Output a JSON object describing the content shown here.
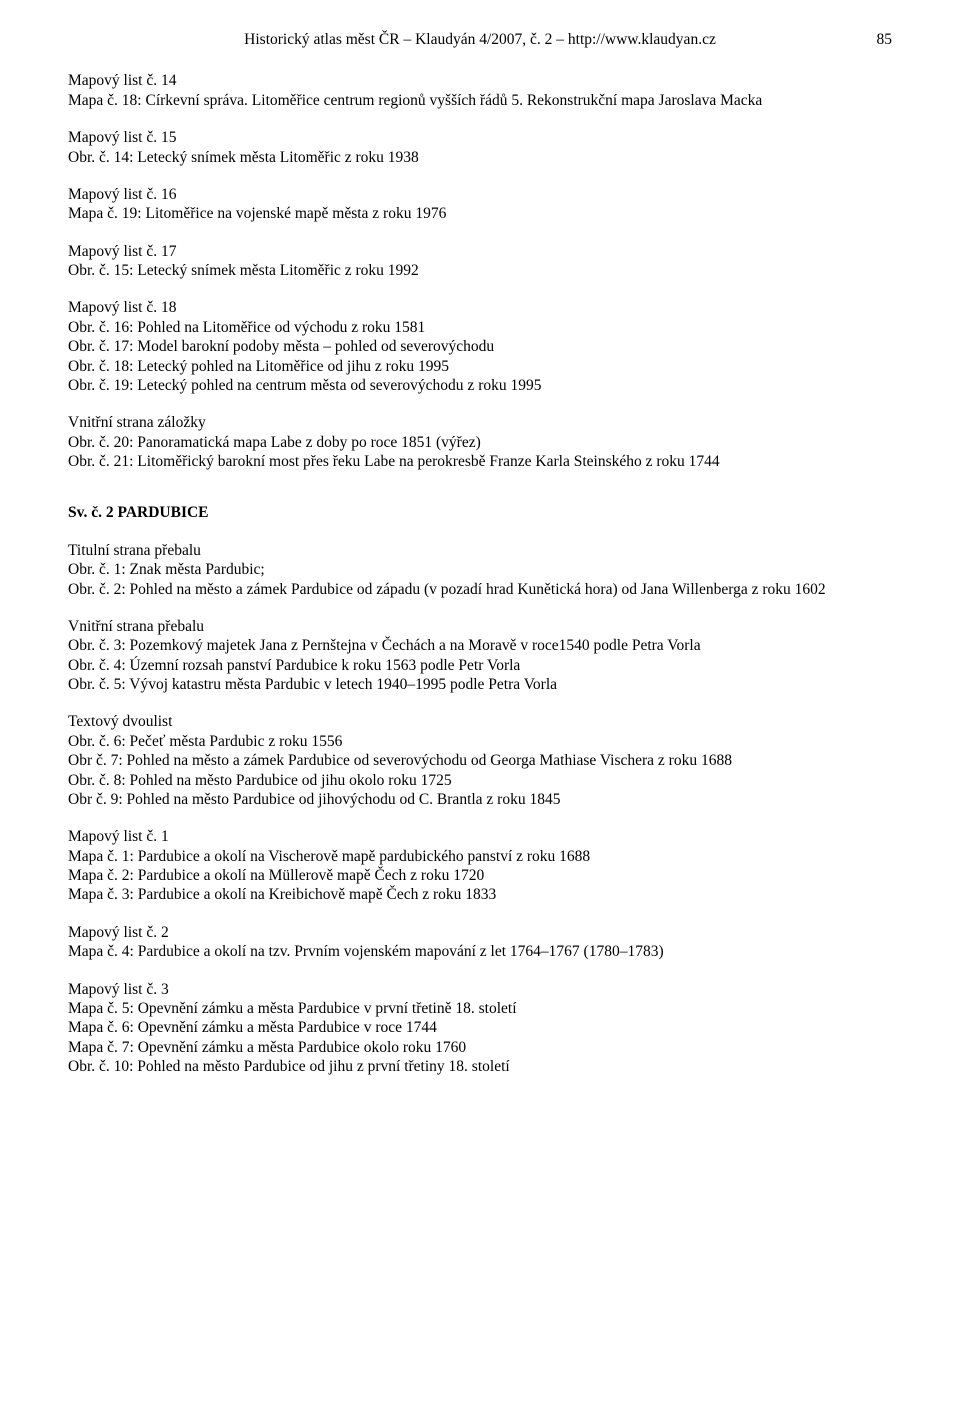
{
  "header": {
    "center": "Historický atlas měst ČR – Klaudyán 4/2007, č. 2 – http://www.klaudyan.cz",
    "page_number": "85"
  },
  "blocks": [
    {
      "lines": [
        "Mapový list č. 14",
        "Mapa č. 18: Církevní správa. Litoměřice centrum regionů vyšších řádů 5. Rekonstrukční mapa Jaroslava Macka"
      ]
    },
    {
      "lines": [
        "Mapový list č. 15",
        "Obr. č. 14: Letecký snímek města Litoměřic z roku 1938"
      ]
    },
    {
      "lines": [
        "Mapový list č. 16",
        "Mapa č. 19: Litoměřice na vojenské  mapě města z roku 1976"
      ]
    },
    {
      "lines": [
        "Mapový list č. 17",
        "Obr. č. 15: Letecký snímek města Litoměřic z roku 1992"
      ]
    },
    {
      "lines": [
        "Mapový list č. 18",
        "Obr. č. 16: Pohled na Litoměřice od východu z roku 1581",
        "Obr. č. 17: Model barokní podoby města – pohled od severovýchodu",
        "Obr. č. 18: Letecký pohled na Litoměřice od jihu z roku 1995",
        "Obr. č. 19: Letecký pohled na centrum města od severovýchodu z roku 1995"
      ]
    },
    {
      "lines": [
        "Vnitřní strana záložky",
        "Obr. č. 20: Panoramatická mapa Labe z doby po roce 1851 (výřez)",
        "Obr. č. 21: Litoměřický barokní most přes řeku Labe na perokresbě Franze Karla Steinského z roku 1744"
      ]
    }
  ],
  "section2": {
    "title": "Sv. č. 2 PARDUBICE",
    "blocks": [
      {
        "lines": [
          "Titulní strana přebalu",
          "Obr. č. 1: Znak města Pardubic;",
          "Obr. č. 2: Pohled na město a zámek Pardubice od západu (v pozadí hrad Kunětická hora) od Jana Willenberga z roku 1602"
        ]
      },
      {
        "lines": [
          "Vnitřní strana přebalu",
          "Obr. č. 3: Pozemkový majetek Jana z Pernštejna v Čechách a na Moravě v roce1540 podle Petra Vorla",
          "Obr. č. 4: Územní rozsah panství Pardubice k roku 1563 podle Petr Vorla",
          "Obr. č. 5: Vývoj katastru města Pardubic v letech 1940–1995 podle Petra Vorla"
        ]
      },
      {
        "lines": [
          "Textový dvoulist",
          "Obr. č. 6: Pečeť města Pardubic z roku 1556",
          "Obr č. 7: Pohled na město a zámek Pardubice od severovýchodu od Georga Mathiase Vischera z roku 1688",
          "Obr. č. 8: Pohled na město Pardubice od jihu okolo roku 1725",
          "Obr č. 9: Pohled na město Pardubice od jihovýchodu od C. Brantla z roku 1845"
        ]
      },
      {
        "lines": [
          "Mapový list č. 1",
          "Mapa č. 1: Pardubice a okolí na Vischerově mapě pardubického panství z roku 1688",
          "Mapa č. 2: Pardubice a okolí na Müllerově mapě Čech z roku 1720",
          "Mapa č. 3: Pardubice a okolí na Kreibichově mapě Čech z roku 1833"
        ]
      },
      {
        "lines": [
          "Mapový list č. 2",
          "Mapa č. 4: Pardubice a okolí na tzv. Prvním vojenském mapování z let 1764–1767 (1780–1783)"
        ]
      },
      {
        "lines": [
          "Mapový list č. 3",
          "Mapa č. 5: Opevnění zámku a města Pardubice v první třetině 18. století",
          "Mapa č. 6: Opevnění zámku a města Pardubice v roce 1744",
          "Mapa č. 7: Opevnění zámku a města Pardubice okolo roku 1760",
          "Obr. č. 10: Pohled na město Pardubice od jihu z první třetiny 18. století"
        ]
      }
    ]
  }
}
